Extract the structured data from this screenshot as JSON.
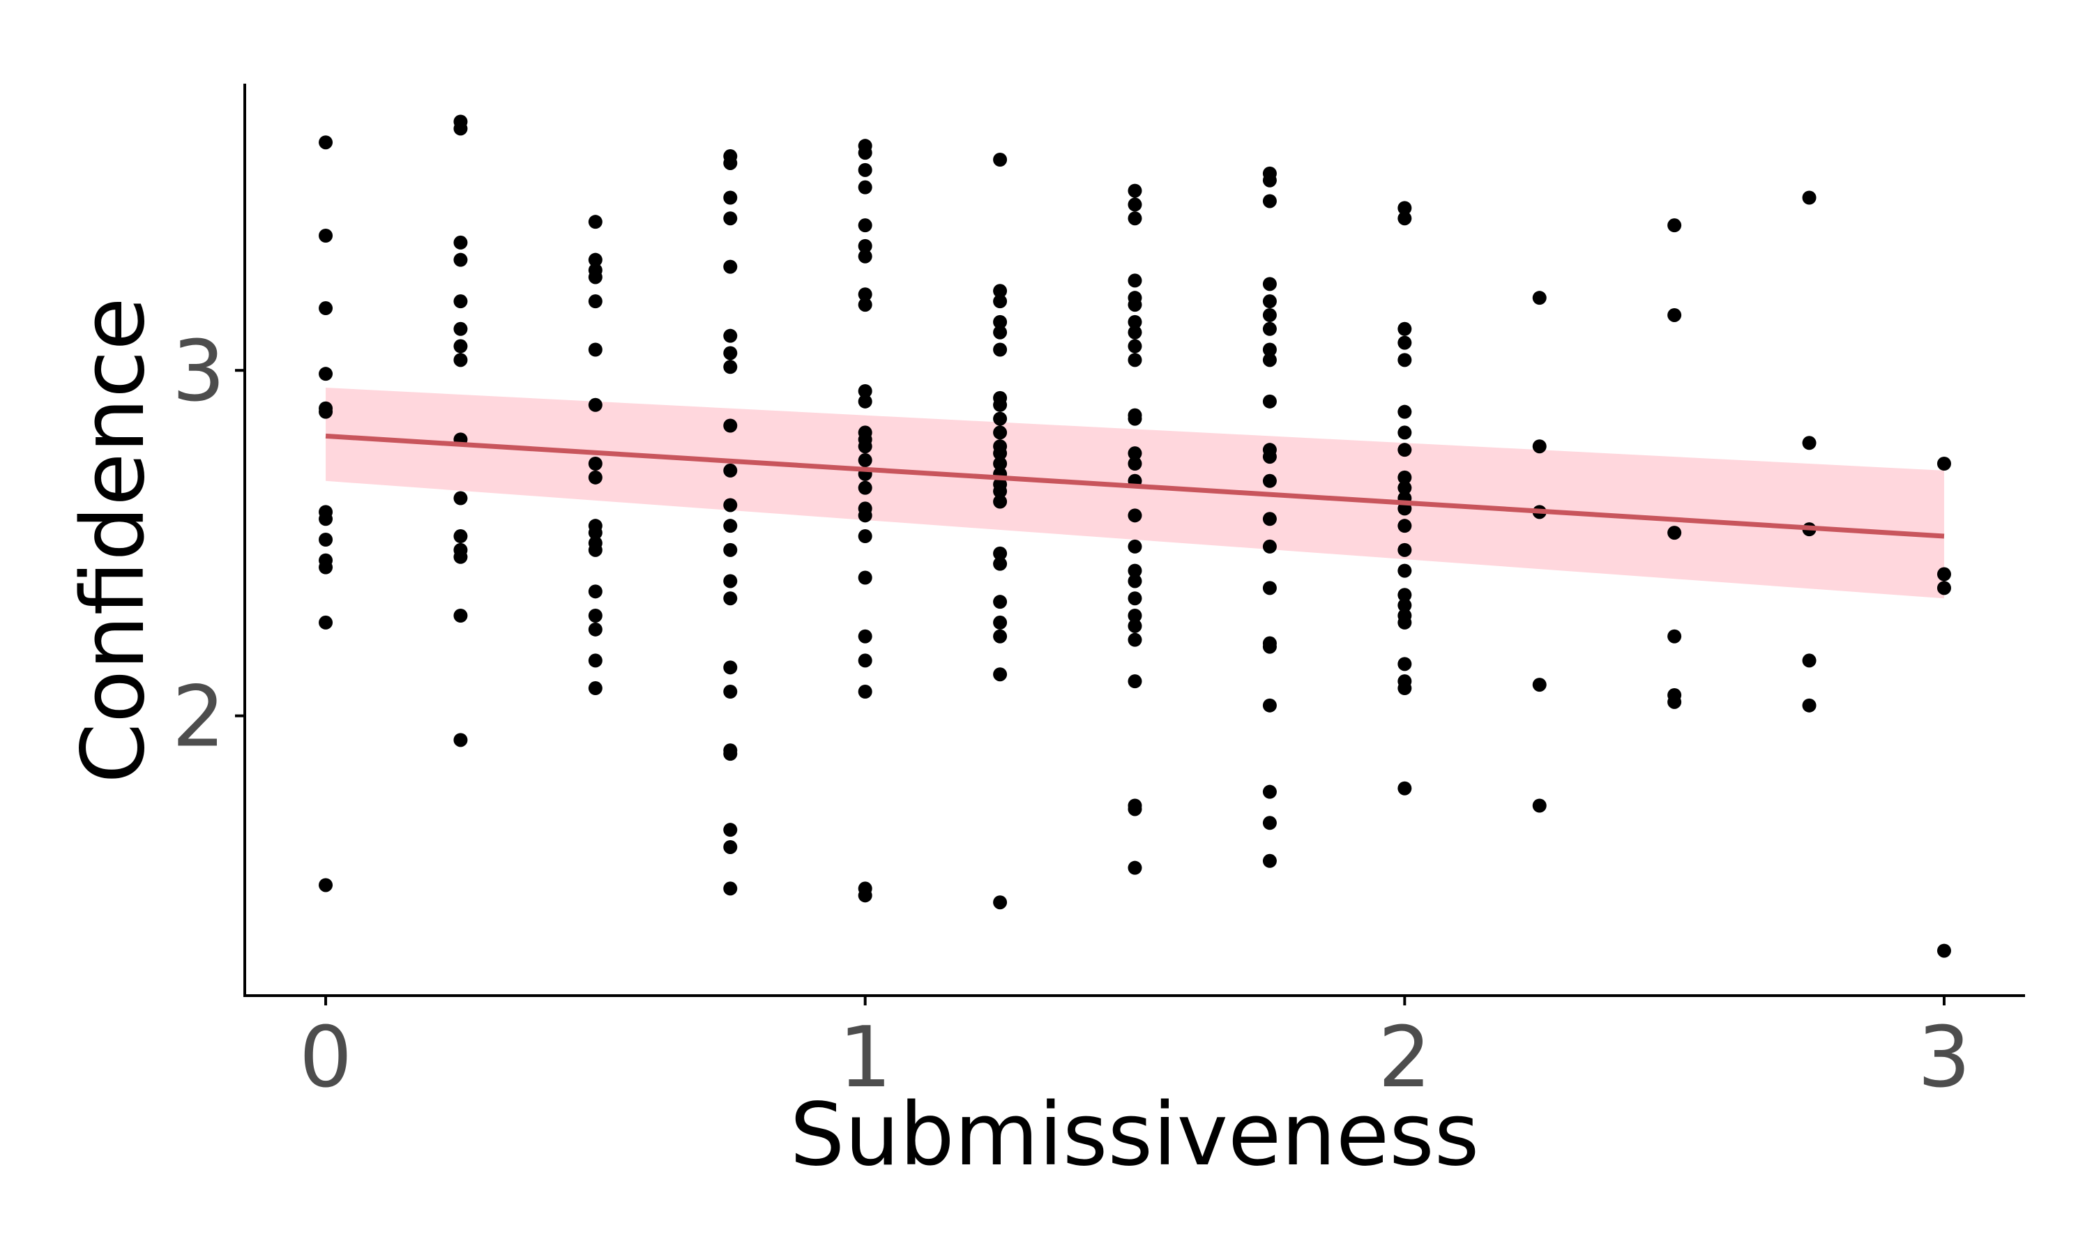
{
  "chart_data": {
    "type": "scatter",
    "title": "",
    "xlabel": "Submissiveness",
    "ylabel": "Confidence",
    "xlim": [
      -0.15,
      3.15
    ],
    "ylim": [
      1.19,
      3.83
    ],
    "x_ticks": [
      0,
      1,
      2,
      3
    ],
    "x_tick_labels": [
      "0",
      "1",
      "2",
      "3"
    ],
    "y_ticks": [
      2,
      3
    ],
    "y_tick_labels": [
      "2",
      "3"
    ],
    "grid": false,
    "colors": {
      "points": "#000000",
      "line": "#c8555c",
      "band": "#ffb6c1"
    },
    "points": [
      [
        0,
        3.66
      ],
      [
        0,
        3.39
      ],
      [
        0,
        3.18
      ],
      [
        0,
        2.99
      ],
      [
        0,
        2.89
      ],
      [
        0,
        2.88
      ],
      [
        0,
        2.59
      ],
      [
        0,
        2.57
      ],
      [
        0,
        2.51
      ],
      [
        0,
        2.45
      ],
      [
        0,
        2.43
      ],
      [
        0,
        2.27
      ],
      [
        0,
        1.51
      ],
      [
        0.25,
        3.72
      ],
      [
        0.25,
        3.7
      ],
      [
        0.25,
        3.37
      ],
      [
        0.25,
        3.32
      ],
      [
        0.25,
        3.2
      ],
      [
        0.25,
        3.12
      ],
      [
        0.25,
        3.07
      ],
      [
        0.25,
        3.03
      ],
      [
        0.25,
        2.8
      ],
      [
        0.25,
        2.63
      ],
      [
        0.25,
        2.52
      ],
      [
        0.25,
        2.48
      ],
      [
        0.25,
        2.46
      ],
      [
        0.25,
        2.29
      ],
      [
        0.25,
        1.93
      ],
      [
        0.5,
        3.43
      ],
      [
        0.5,
        3.32
      ],
      [
        0.5,
        3.29
      ],
      [
        0.5,
        3.27
      ],
      [
        0.5,
        3.2
      ],
      [
        0.5,
        3.06
      ],
      [
        0.5,
        2.9
      ],
      [
        0.5,
        2.73
      ],
      [
        0.5,
        2.69
      ],
      [
        0.5,
        2.55
      ],
      [
        0.5,
        2.53
      ],
      [
        0.5,
        2.5
      ],
      [
        0.5,
        2.48
      ],
      [
        0.5,
        2.36
      ],
      [
        0.5,
        2.29
      ],
      [
        0.5,
        2.25
      ],
      [
        0.5,
        2.16
      ],
      [
        0.5,
        2.08
      ],
      [
        0.75,
        3.62
      ],
      [
        0.75,
        3.6
      ],
      [
        0.75,
        3.5
      ],
      [
        0.75,
        3.44
      ],
      [
        0.75,
        3.3
      ],
      [
        0.75,
        3.1
      ],
      [
        0.75,
        3.05
      ],
      [
        0.75,
        3.01
      ],
      [
        0.75,
        2.84
      ],
      [
        0.75,
        2.71
      ],
      [
        0.75,
        2.61
      ],
      [
        0.75,
        2.55
      ],
      [
        0.75,
        2.48
      ],
      [
        0.75,
        2.39
      ],
      [
        0.75,
        2.34
      ],
      [
        0.75,
        2.14
      ],
      [
        0.75,
        2.07
      ],
      [
        0.75,
        1.9
      ],
      [
        0.75,
        1.89
      ],
      [
        0.75,
        1.67
      ],
      [
        0.75,
        1.62
      ],
      [
        0.75,
        1.5
      ],
      [
        1,
        3.65
      ],
      [
        1,
        3.63
      ],
      [
        1,
        3.58
      ],
      [
        1,
        3.53
      ],
      [
        1,
        3.42
      ],
      [
        1,
        3.36
      ],
      [
        1,
        3.33
      ],
      [
        1,
        3.22
      ],
      [
        1,
        3.19
      ],
      [
        1,
        2.94
      ],
      [
        1,
        2.91
      ],
      [
        1,
        2.82
      ],
      [
        1,
        2.8
      ],
      [
        1,
        2.78
      ],
      [
        1,
        2.74
      ],
      [
        1,
        2.7
      ],
      [
        1,
        2.66
      ],
      [
        1,
        2.6
      ],
      [
        1,
        2.58
      ],
      [
        1,
        2.52
      ],
      [
        1,
        2.4
      ],
      [
        1,
        2.23
      ],
      [
        1,
        2.16
      ],
      [
        1,
        2.07
      ],
      [
        1,
        1.5
      ],
      [
        1,
        1.48
      ],
      [
        1.25,
        3.61
      ],
      [
        1.25,
        3.23
      ],
      [
        1.25,
        3.2
      ],
      [
        1.25,
        3.14
      ],
      [
        1.25,
        3.11
      ],
      [
        1.25,
        3.06
      ],
      [
        1.25,
        2.92
      ],
      [
        1.25,
        2.9
      ],
      [
        1.25,
        2.86
      ],
      [
        1.25,
        2.82
      ],
      [
        1.25,
        2.78
      ],
      [
        1.25,
        2.76
      ],
      [
        1.25,
        2.73
      ],
      [
        1.25,
        2.7
      ],
      [
        1.25,
        2.67
      ],
      [
        1.25,
        2.65
      ],
      [
        1.25,
        2.62
      ],
      [
        1.25,
        2.47
      ],
      [
        1.25,
        2.44
      ],
      [
        1.25,
        2.33
      ],
      [
        1.25,
        2.27
      ],
      [
        1.25,
        2.23
      ],
      [
        1.25,
        2.12
      ],
      [
        1.25,
        1.46
      ],
      [
        1.5,
        3.52
      ],
      [
        1.5,
        3.48
      ],
      [
        1.5,
        3.44
      ],
      [
        1.5,
        3.26
      ],
      [
        1.5,
        3.21
      ],
      [
        1.5,
        3.19
      ],
      [
        1.5,
        3.14
      ],
      [
        1.5,
        3.11
      ],
      [
        1.5,
        3.07
      ],
      [
        1.5,
        3.03
      ],
      [
        1.5,
        2.87
      ],
      [
        1.5,
        2.86
      ],
      [
        1.5,
        2.76
      ],
      [
        1.5,
        2.73
      ],
      [
        1.5,
        2.68
      ],
      [
        1.5,
        2.58
      ],
      [
        1.5,
        2.49
      ],
      [
        1.5,
        2.42
      ],
      [
        1.5,
        2.39
      ],
      [
        1.5,
        2.34
      ],
      [
        1.5,
        2.29
      ],
      [
        1.5,
        2.26
      ],
      [
        1.5,
        2.22
      ],
      [
        1.5,
        2.1
      ],
      [
        1.5,
        1.74
      ],
      [
        1.5,
        1.73
      ],
      [
        1.5,
        1.56
      ],
      [
        1.75,
        3.57
      ],
      [
        1.75,
        3.55
      ],
      [
        1.75,
        3.49
      ],
      [
        1.75,
        3.25
      ],
      [
        1.75,
        3.2
      ],
      [
        1.75,
        3.16
      ],
      [
        1.75,
        3.12
      ],
      [
        1.75,
        3.06
      ],
      [
        1.75,
        3.03
      ],
      [
        1.75,
        2.91
      ],
      [
        1.75,
        2.77
      ],
      [
        1.75,
        2.75
      ],
      [
        1.75,
        2.68
      ],
      [
        1.75,
        2.57
      ],
      [
        1.75,
        2.49
      ],
      [
        1.75,
        2.37
      ],
      [
        1.75,
        2.21
      ],
      [
        1.75,
        2.2
      ],
      [
        1.75,
        2.03
      ],
      [
        1.75,
        1.78
      ],
      [
        1.75,
        1.69
      ],
      [
        1.75,
        1.58
      ],
      [
        2,
        3.47
      ],
      [
        2,
        3.44
      ],
      [
        2,
        3.12
      ],
      [
        2,
        3.08
      ],
      [
        2,
        3.03
      ],
      [
        2,
        2.88
      ],
      [
        2,
        2.82
      ],
      [
        2,
        2.77
      ],
      [
        2,
        2.69
      ],
      [
        2,
        2.66
      ],
      [
        2,
        2.63
      ],
      [
        2,
        2.6
      ],
      [
        2,
        2.55
      ],
      [
        2,
        2.48
      ],
      [
        2,
        2.42
      ],
      [
        2,
        2.35
      ],
      [
        2,
        2.32
      ],
      [
        2,
        2.29
      ],
      [
        2,
        2.27
      ],
      [
        2,
        2.15
      ],
      [
        2,
        2.1
      ],
      [
        2,
        2.08
      ],
      [
        2,
        1.79
      ],
      [
        2.25,
        3.21
      ],
      [
        2.25,
        2.78
      ],
      [
        2.25,
        2.59
      ],
      [
        2.25,
        2.09
      ],
      [
        2.25,
        1.74
      ],
      [
        2.5,
        3.42
      ],
      [
        2.5,
        3.16
      ],
      [
        2.5,
        2.53
      ],
      [
        2.5,
        2.23
      ],
      [
        2.5,
        2.06
      ],
      [
        2.5,
        2.04
      ],
      [
        2.75,
        3.5
      ],
      [
        2.75,
        2.79
      ],
      [
        2.75,
        2.54
      ],
      [
        2.75,
        2.16
      ],
      [
        2.75,
        2.03
      ],
      [
        3,
        2.73
      ],
      [
        3,
        2.41
      ],
      [
        3,
        2.37
      ],
      [
        3,
        1.32
      ]
    ],
    "fit_line": {
      "x": [
        0,
        3
      ],
      "y": [
        2.81,
        2.52
      ]
    },
    "confidence_band": {
      "x": [
        0,
        3
      ],
      "lower": [
        2.68,
        2.34
      ],
      "upper": [
        2.95,
        2.71
      ]
    }
  }
}
